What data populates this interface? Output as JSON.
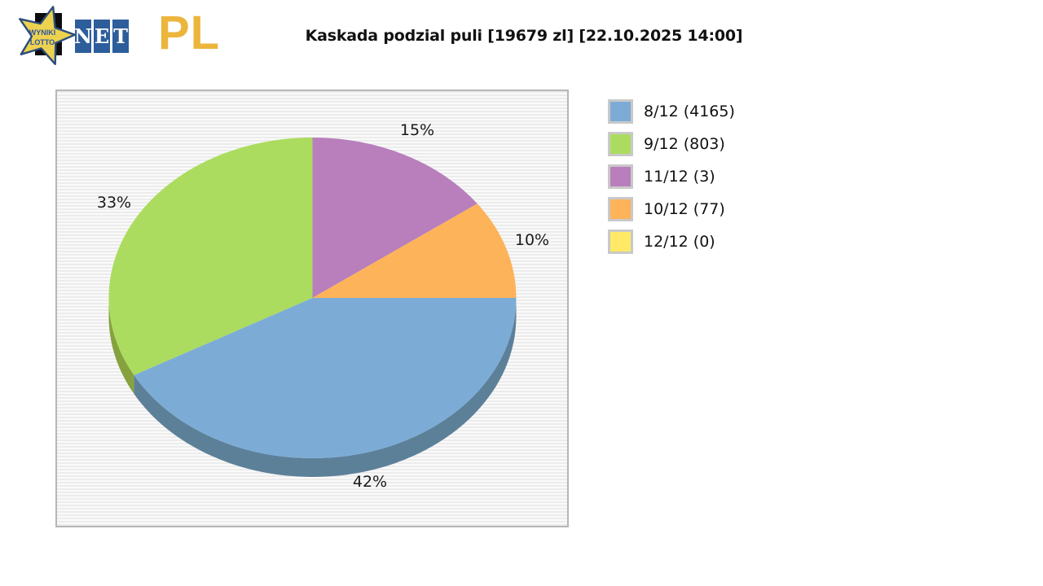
{
  "logo": {
    "star_line1": "WYNIKI",
    "star_line2": "LOTTO",
    "net_letters": [
      "N",
      "E",
      "T"
    ],
    "pl": "PL"
  },
  "title": "Kaskada podzial puli [19679 zl] [22.10.2025 14:00]",
  "chart_data": {
    "type": "pie",
    "title": "Kaskada podzial puli [19679 zl] [22.10.2025 14:00]",
    "style": "3d-pie",
    "legend_position": "right",
    "slices": [
      {
        "label": "8/12",
        "count": 4165,
        "pct": 42,
        "legend": "8/12 (4165)",
        "color": "#7cacd6",
        "dark": "#5d8099"
      },
      {
        "label": "9/12",
        "count": 803,
        "pct": 33,
        "legend": "9/12 (803)",
        "color": "#abdc5f",
        "dark": "#85a23f"
      },
      {
        "label": "11/12",
        "count": 3,
        "pct": 15,
        "legend": "11/12 (3)",
        "color": "#b87fbc",
        "dark": "#8a5f8d"
      },
      {
        "label": "10/12",
        "count": 77,
        "pct": 10,
        "legend": "10/12 (77)",
        "color": "#fdb359",
        "dark": "#c08843"
      },
      {
        "label": "12/12",
        "count": 0,
        "pct": 0,
        "legend": "12/12 (0)",
        "color": "#ffe966",
        "dark": "#c5b54e"
      }
    ],
    "pie_order": [
      2,
      3,
      0,
      1
    ],
    "percent_labels": [
      "15%",
      "10%",
      "42%",
      "33%"
    ]
  }
}
